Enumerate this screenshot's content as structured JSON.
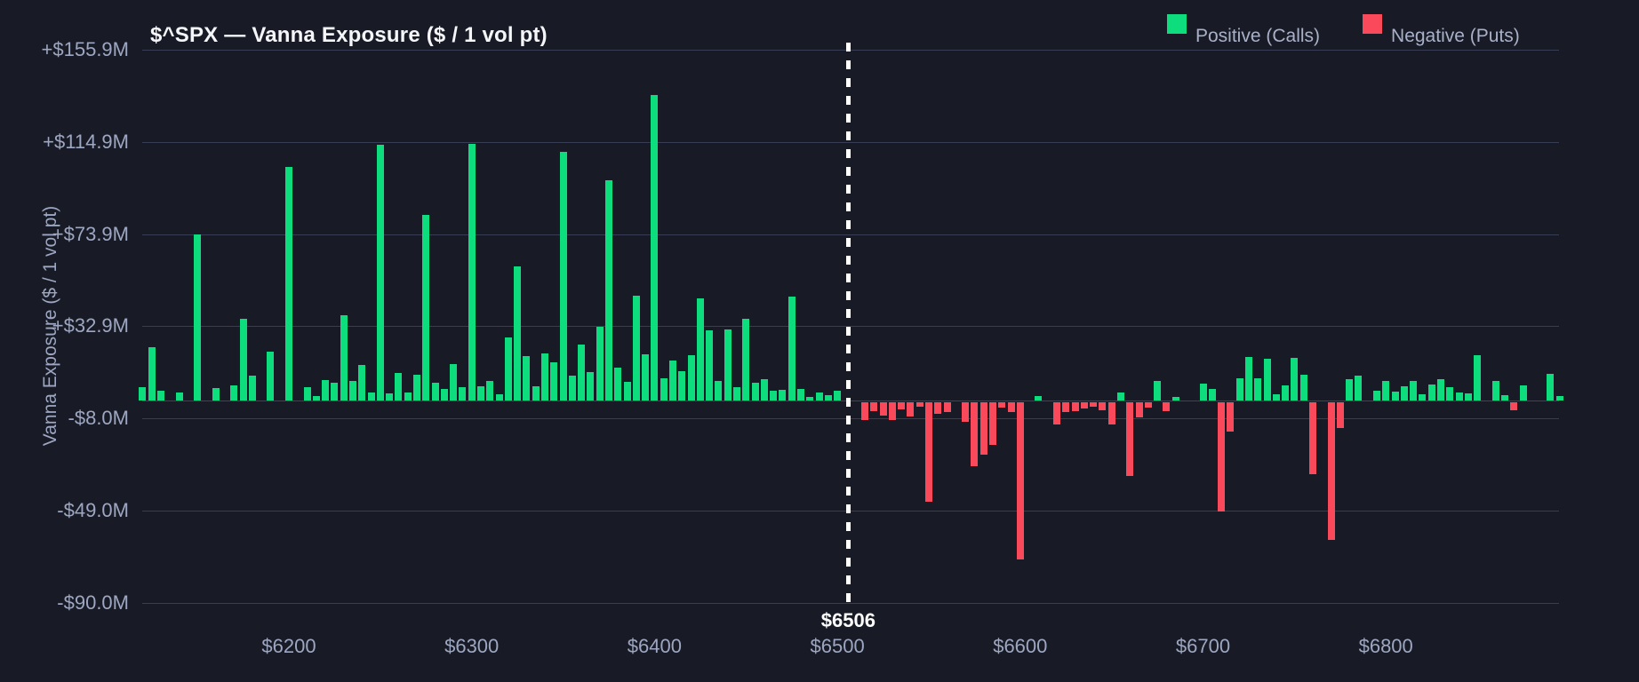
{
  "header": {
    "title": "$^SPX — Vanna Exposure ($ / 1 vol pt)"
  },
  "legend": {
    "items": [
      {
        "label": "Positive (Calls)",
        "color": "#0edd7d"
      },
      {
        "label": "Negative (Puts)",
        "color": "#fa495a"
      }
    ]
  },
  "colors": {
    "positive": "#0edd7d",
    "negative": "#fa495a",
    "background": "#181b25",
    "gridline": "#363d55",
    "tick_label": "#9ea7c2",
    "title_text": "#f4f6fa",
    "spot_line": "#ffffff"
  },
  "chart_data": {
    "type": "bar",
    "title": "$^SPX — Vanna Exposure ($ / 1 vol pt)",
    "ylabel": "Vanna Exposure ($ / 1 vol pt)",
    "value_unit": "$M per 1 vol pt",
    "grid": true,
    "legend_position": "top-right",
    "y_ticks": [
      {
        "value": 155.9,
        "label": "+$155.9M"
      },
      {
        "value": 114.9,
        "label": "+$114.9M"
      },
      {
        "value": 73.9,
        "label": "+$73.9M"
      },
      {
        "value": 32.9,
        "label": "+$32.9M"
      },
      {
        "value": -8.0,
        "label": "-$8.0M"
      },
      {
        "value": -49.0,
        "label": "-$49.0M"
      },
      {
        "value": -90.0,
        "label": "-$90.0M"
      }
    ],
    "x_ticks": [
      {
        "value": 6200,
        "label": "$6200"
      },
      {
        "value": 6300,
        "label": "$6300"
      },
      {
        "value": 6400,
        "label": "$6400"
      },
      {
        "value": 6500,
        "label": "$6500"
      },
      {
        "value": 6600,
        "label": "$6600"
      },
      {
        "value": 6700,
        "label": "$6700"
      },
      {
        "value": 6800,
        "label": "$6800"
      }
    ],
    "x_range": [
      6119,
      6897
    ],
    "ylim": [
      -100,
      164
    ],
    "spot_line": {
      "strike": 6506,
      "label": "$6506",
      "style": "dashed-white"
    },
    "series": [
      {
        "name": "Positive (Calls)",
        "sign": "positive",
        "color": "#0edd7d"
      },
      {
        "name": "Negative (Puts)",
        "sign": "negative",
        "color": "#fa495a"
      }
    ],
    "bars": [
      [
        6120,
        5.9
      ],
      [
        6125,
        23.8
      ],
      [
        6130,
        4.2
      ],
      [
        6140,
        3.4
      ],
      [
        6150,
        73.7
      ],
      [
        6160,
        5.5
      ],
      [
        6170,
        6.6
      ],
      [
        6175,
        36.3
      ],
      [
        6180,
        11.0
      ],
      [
        6190,
        21.8
      ],
      [
        6200,
        103.6
      ],
      [
        6210,
        5.8
      ],
      [
        6215,
        2.0
      ],
      [
        6220,
        9.0
      ],
      [
        6225,
        7.8
      ],
      [
        6230,
        37.9
      ],
      [
        6235,
        8.6
      ],
      [
        6240,
        15.8
      ],
      [
        6245,
        3.3
      ],
      [
        6250,
        113.5
      ],
      [
        6255,
        2.9
      ],
      [
        6260,
        12.3
      ],
      [
        6265,
        3.6
      ],
      [
        6270,
        11.5
      ],
      [
        6275,
        82.5
      ],
      [
        6280,
        7.9
      ],
      [
        6285,
        4.9
      ],
      [
        6290,
        16.2
      ],
      [
        6295,
        5.7
      ],
      [
        6300,
        113.9
      ],
      [
        6305,
        6.2
      ],
      [
        6310,
        8.6
      ],
      [
        6315,
        2.6
      ],
      [
        6320,
        28.1
      ],
      [
        6325,
        59.4
      ],
      [
        6330,
        19.8
      ],
      [
        6335,
        6.2
      ],
      [
        6340,
        20.7
      ],
      [
        6345,
        16.8
      ],
      [
        6350,
        110.5
      ],
      [
        6355,
        11.0
      ],
      [
        6360,
        24.7
      ],
      [
        6365,
        12.5
      ],
      [
        6370,
        32.6
      ],
      [
        6375,
        97.7
      ],
      [
        6380,
        14.5
      ],
      [
        6385,
        8.3
      ],
      [
        6390,
        46.5
      ],
      [
        6395,
        20.5
      ],
      [
        6400,
        135.6
      ],
      [
        6405,
        9.6
      ],
      [
        6410,
        17.6
      ],
      [
        6415,
        12.8
      ],
      [
        6420,
        20.1
      ],
      [
        6425,
        45.3
      ],
      [
        6430,
        31.3
      ],
      [
        6435,
        8.8
      ],
      [
        6440,
        31.4
      ],
      [
        6445,
        5.9
      ],
      [
        6450,
        36.3
      ],
      [
        6455,
        7.9
      ],
      [
        6460,
        9.2
      ],
      [
        6465,
        4.4
      ],
      [
        6470,
        4.6
      ],
      [
        6475,
        46.2
      ],
      [
        6480,
        4.9
      ],
      [
        6485,
        1.4
      ],
      [
        6490,
        3.6
      ],
      [
        6495,
        2.2
      ],
      [
        6500,
        4.2
      ],
      [
        6515,
        -7.9
      ],
      [
        6520,
        -4.2
      ],
      [
        6525,
        -5.9
      ],
      [
        6530,
        -7.9
      ],
      [
        6535,
        -3.3
      ],
      [
        6540,
        -6.6
      ],
      [
        6545,
        -2.0
      ],
      [
        6550,
        -44.2
      ],
      [
        6555,
        -5.3
      ],
      [
        6560,
        -4.6
      ],
      [
        6570,
        -8.8
      ],
      [
        6575,
        -28.4
      ],
      [
        6580,
        -23.5
      ],
      [
        6585,
        -18.9
      ],
      [
        6590,
        -2.6
      ],
      [
        6595,
        -4.6
      ],
      [
        6600,
        -70.0
      ],
      [
        6610,
        2.0
      ],
      [
        6620,
        -10.2
      ],
      [
        6625,
        -4.6
      ],
      [
        6630,
        -4.0
      ],
      [
        6635,
        -3.0
      ],
      [
        6640,
        -2.0
      ],
      [
        6645,
        -3.6
      ],
      [
        6650,
        -10.2
      ],
      [
        6655,
        3.6
      ],
      [
        6660,
        -33.0
      ],
      [
        6665,
        -7.0
      ],
      [
        6670,
        -2.6
      ],
      [
        6675,
        8.8
      ],
      [
        6680,
        -4.0
      ],
      [
        6685,
        1.3
      ],
      [
        6700,
        7.5
      ],
      [
        6705,
        4.9
      ],
      [
        6710,
        -48.8
      ],
      [
        6715,
        -13.2
      ],
      [
        6720,
        9.9
      ],
      [
        6725,
        19.4
      ],
      [
        6730,
        9.9
      ],
      [
        6735,
        18.5
      ],
      [
        6740,
        2.6
      ],
      [
        6745,
        6.6
      ],
      [
        6750,
        18.9
      ],
      [
        6755,
        11.5
      ],
      [
        6760,
        -32.1
      ],
      [
        6770,
        -61.4
      ],
      [
        6775,
        -11.5
      ],
      [
        6780,
        9.5
      ],
      [
        6785,
        11.0
      ],
      [
        6795,
        4.4
      ],
      [
        6800,
        8.6
      ],
      [
        6805,
        4.0
      ],
      [
        6810,
        6.2
      ],
      [
        6815,
        8.8
      ],
      [
        6820,
        2.6
      ],
      [
        6825,
        7.0
      ],
      [
        6830,
        9.2
      ],
      [
        6835,
        5.7
      ],
      [
        6840,
        3.6
      ],
      [
        6845,
        3.0
      ],
      [
        6850,
        20.1
      ],
      [
        6860,
        8.8
      ],
      [
        6865,
        2.2
      ],
      [
        6870,
        -3.6
      ],
      [
        6875,
        6.6
      ],
      [
        6890,
        11.9
      ],
      [
        6895,
        1.9
      ]
    ]
  }
}
